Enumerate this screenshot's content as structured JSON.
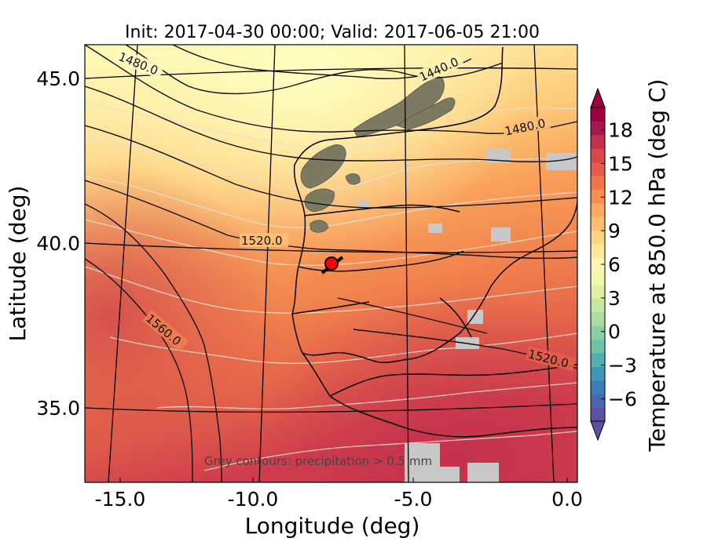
{
  "title": "Init: 2017-04-30 00:00; Valid: 2017-06-05 21:00",
  "xlabel": "Longitude (deg)",
  "ylabel": "Latitude (deg)",
  "x_ticks": [
    "-15.0",
    "-10.0",
    "-5.0",
    "0.0"
  ],
  "y_ticks": [
    "45.0",
    "40.0",
    "35.0"
  ],
  "colorbar": {
    "label": "Temperature at 850.0 hPa (deg C)",
    "ticks": [
      "18",
      "15",
      "12",
      "9",
      "6",
      "3",
      "0",
      "−3",
      "−6"
    ],
    "range": [
      -8,
      20
    ],
    "colors": [
      "#5e4fa2",
      "#4a67ad",
      "#3a7eb8",
      "#3f97b7",
      "#54aead",
      "#6bc4a4",
      "#8acfa4",
      "#a9dda2",
      "#c5e89e",
      "#dff1a1",
      "#f1f9a8",
      "#fbf6b1",
      "#fee89a",
      "#fed584",
      "#fdbf6f",
      "#fca85e",
      "#f88f52",
      "#f2744a",
      "#e65c48",
      "#d8474c",
      "#c3304e",
      "#a8184e",
      "#9e0142"
    ]
  },
  "contour_labels": [
    "1480.0",
    "1440.0",
    "1480.0",
    "1520.0",
    "1560.0",
    "1520.0"
  ],
  "annotation": "Grey contours: precipitation > 0.5 mm",
  "marker": {
    "name": "point-marker",
    "lon": -7.6,
    "lat": 39.35,
    "color": "#ff0000"
  }
}
